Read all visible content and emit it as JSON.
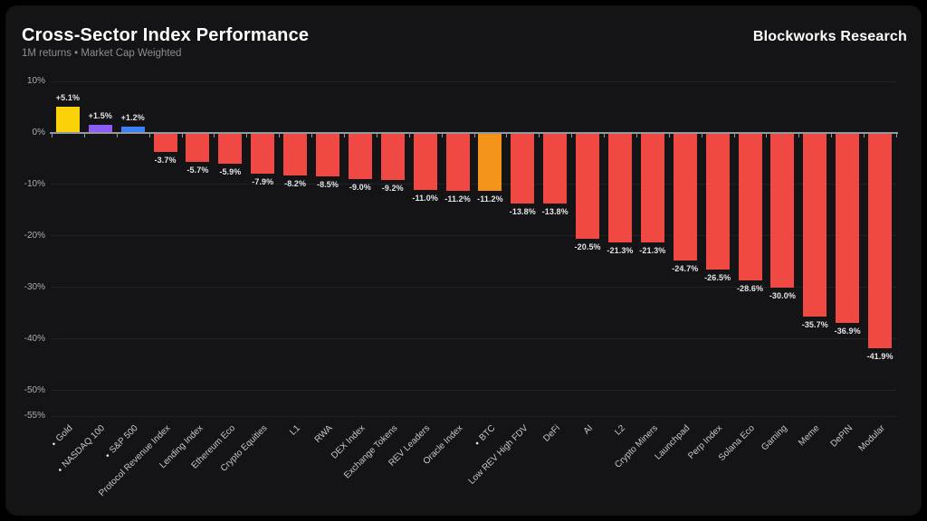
{
  "header": {
    "title": "Cross-Sector Index Performance",
    "subtitle": "1M returns • Market Cap Weighted",
    "brand": "Blockworks Research"
  },
  "chart_data": {
    "type": "bar",
    "title": "Cross-Sector Index Performance",
    "subtitle": "1M returns • Market Cap Weighted",
    "xlabel": "",
    "ylabel": "",
    "ylim": [
      -55,
      10
    ],
    "yticks": [
      10,
      0,
      -10,
      -20,
      -30,
      -40,
      -50,
      -55
    ],
    "ytick_labels": [
      "10%",
      "0%",
      "-10%",
      "-20%",
      "-30%",
      "-40%",
      "-50%",
      "-55%"
    ],
    "grid": true,
    "legend": false,
    "colors": {
      "default_bar": "#F04843",
      "gold_bar": "#FBD20A",
      "purple_bar": "#8B5CF6",
      "blue_bar": "#3B82F6",
      "orange_bar": "#F5941A",
      "panel_background": "#141416",
      "outer_background": "#000000"
    },
    "bars": [
      {
        "label": "Gold",
        "value": 5.1,
        "value_label": "+5.1%",
        "color": "#FBD20A",
        "bullet": true
      },
      {
        "label": "NASDAQ 100",
        "value": 1.5,
        "value_label": "+1.5%",
        "color": "#8B5CF6",
        "bullet": true
      },
      {
        "label": "S&P 500",
        "value": 1.2,
        "value_label": "+1.2%",
        "color": "#3B82F6",
        "bullet": true
      },
      {
        "label": "Protocol Revenue Index",
        "value": -3.7,
        "value_label": "-3.7%",
        "color": "#F04843",
        "bullet": false
      },
      {
        "label": "Lending Index",
        "value": -5.7,
        "value_label": "-5.7%",
        "color": "#F04843",
        "bullet": false
      },
      {
        "label": "Ethereum Eco",
        "value": -5.9,
        "value_label": "-5.9%",
        "color": "#F04843",
        "bullet": false
      },
      {
        "label": "Crypto Equities",
        "value": -7.9,
        "value_label": "-7.9%",
        "color": "#F04843",
        "bullet": false
      },
      {
        "label": "L1",
        "value": -8.2,
        "value_label": "-8.2%",
        "color": "#F04843",
        "bullet": false
      },
      {
        "label": "RWA",
        "value": -8.5,
        "value_label": "-8.5%",
        "color": "#F04843",
        "bullet": false
      },
      {
        "label": "DEX Index",
        "value": -9.0,
        "value_label": "-9.0%",
        "color": "#F04843",
        "bullet": false
      },
      {
        "label": "Exchange Tokens",
        "value": -9.2,
        "value_label": "-9.2%",
        "color": "#F04843",
        "bullet": false
      },
      {
        "label": "REV Leaders",
        "value": -11.0,
        "value_label": "-11.0%",
        "color": "#F04843",
        "bullet": false
      },
      {
        "label": "Oracle Index",
        "value": -11.2,
        "value_label": "-11.2%",
        "color": "#F04843",
        "bullet": false
      },
      {
        "label": "BTC",
        "value": -11.2,
        "value_label": "-11.2%",
        "color": "#F5941A",
        "bullet": true
      },
      {
        "label": "Low REV High FDV",
        "value": -13.8,
        "value_label": "-13.8%",
        "color": "#F04843",
        "bullet": false
      },
      {
        "label": "DeFi",
        "value": -13.8,
        "value_label": "-13.8%",
        "color": "#F04843",
        "bullet": false
      },
      {
        "label": "AI",
        "value": -20.5,
        "value_label": "-20.5%",
        "color": "#F04843",
        "bullet": false
      },
      {
        "label": "L2",
        "value": -21.3,
        "value_label": "-21.3%",
        "color": "#F04843",
        "bullet": false
      },
      {
        "label": "Crypto Miners",
        "value": -21.3,
        "value_label": "-21.3%",
        "color": "#F04843",
        "bullet": false
      },
      {
        "label": "Launchpad",
        "value": -24.7,
        "value_label": "-24.7%",
        "color": "#F04843",
        "bullet": false
      },
      {
        "label": "Perp Index",
        "value": -26.5,
        "value_label": "-26.5%",
        "color": "#F04843",
        "bullet": false
      },
      {
        "label": "Solana Eco",
        "value": -28.6,
        "value_label": "-28.6%",
        "color": "#F04843",
        "bullet": false
      },
      {
        "label": "Gaming",
        "value": -30.0,
        "value_label": "-30.0%",
        "color": "#F04843",
        "bullet": false
      },
      {
        "label": "Meme",
        "value": -35.7,
        "value_label": "-35.7%",
        "color": "#F04843",
        "bullet": false
      },
      {
        "label": "DePIN",
        "value": -36.9,
        "value_label": "-36.9%",
        "color": "#F04843",
        "bullet": false
      },
      {
        "label": "Modular",
        "value": -41.9,
        "value_label": "-41.9%",
        "color": "#F04843",
        "bullet": false
      }
    ]
  }
}
